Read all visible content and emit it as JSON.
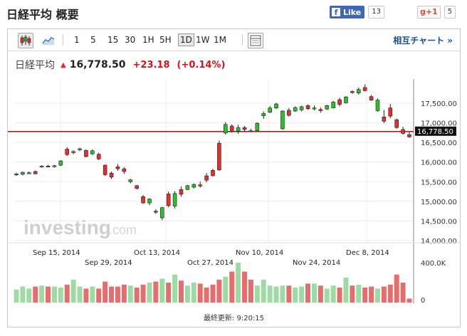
{
  "page": {
    "title": "日経平均 概要"
  },
  "social": {
    "fb_label": "Like",
    "fb_glyph": "f",
    "fb_count": "13",
    "gplus_label": "g+1",
    "gplus_count": "5"
  },
  "toolbar": {
    "ranges": [
      "1",
      "5",
      "15",
      "30",
      "1H",
      "5H",
      "1D",
      "1W",
      "1M"
    ],
    "active_range": "1D",
    "compare_label": "相互チャート »",
    "icons": [
      "candlestick-icon",
      "line-chart-icon",
      "table-icon"
    ]
  },
  "quote": {
    "name": "日経平均",
    "price": "16,778.50",
    "change": "+23.18",
    "change_pct": "(+0.14%)",
    "up_color": "#e02020"
  },
  "watermark": {
    "brand": "investing",
    "suffix": ".com"
  },
  "footer": {
    "last_update": "最終更新: 9:20:15"
  },
  "chart_data": {
    "type": "candlestick",
    "y_ticks": [
      "17,500.00",
      "17,000.00",
      "16,500.00",
      "16,000.00",
      "15,500.00",
      "15,000.00",
      "14,500.00",
      "14,000.00"
    ],
    "ylim": [
      14000,
      18000
    ],
    "x_labels_top": [
      "Sep 15, 2014",
      "Oct 13, 2014",
      "Nov 10, 2014",
      "Dec 8, 2014"
    ],
    "x_labels_bottom": [
      "Sep 29, 2014",
      "Oct 27, 2014",
      "Nov 24, 2014"
    ],
    "volume_ticks": [
      "400.0K",
      "0"
    ],
    "current_price": 16778.5,
    "current_label": "16,778.50",
    "up_color": "#2ebd2e",
    "down_color": "#e03131",
    "candles": [
      {
        "o": 15680,
        "h": 15730,
        "l": 15650,
        "c": 15700
      },
      {
        "o": 15690,
        "h": 15760,
        "l": 15660,
        "c": 15740
      },
      {
        "o": 15720,
        "h": 15760,
        "l": 15700,
        "c": 15730
      },
      {
        "o": 15760,
        "h": 15790,
        "l": 15690,
        "c": 15700
      },
      {
        "o": 15880,
        "h": 15920,
        "l": 15860,
        "c": 15900
      },
      {
        "o": 15900,
        "h": 15930,
        "l": 15870,
        "c": 15890
      },
      {
        "o": 15880,
        "h": 15930,
        "l": 15860,
        "c": 15910
      },
      {
        "o": 15920,
        "h": 16050,
        "l": 15900,
        "c": 16030
      },
      {
        "o": 16330,
        "h": 16380,
        "l": 16150,
        "c": 16190
      },
      {
        "o": 16240,
        "h": 16300,
        "l": 16200,
        "c": 16270
      },
      {
        "o": 16320,
        "h": 16370,
        "l": 16280,
        "c": 16340
      },
      {
        "o": 16300,
        "h": 16320,
        "l": 16120,
        "c": 16140
      },
      {
        "o": 16210,
        "h": 16320,
        "l": 16180,
        "c": 16290
      },
      {
        "o": 16200,
        "h": 16240,
        "l": 16050,
        "c": 16080
      },
      {
        "o": 15920,
        "h": 15940,
        "l": 15650,
        "c": 15680
      },
      {
        "o": 15720,
        "h": 15760,
        "l": 15570,
        "c": 15620
      },
      {
        "o": 15880,
        "h": 15950,
        "l": 15780,
        "c": 15830
      },
      {
        "o": 15830,
        "h": 15870,
        "l": 15700,
        "c": 15760
      },
      {
        "o": 15500,
        "h": 15570,
        "l": 15460,
        "c": 15550
      },
      {
        "o": 15400,
        "h": 15420,
        "l": 15300,
        "c": 15330
      },
      {
        "o": 15120,
        "h": 15160,
        "l": 14940,
        "c": 14960
      },
      {
        "o": 14960,
        "h": 15080,
        "l": 14900,
        "c": 15060
      },
      {
        "o": 14750,
        "h": 14800,
        "l": 14680,
        "c": 14730
      },
      {
        "o": 14580,
        "h": 14860,
        "l": 14520,
        "c": 14840
      },
      {
        "o": 15190,
        "h": 15250,
        "l": 14850,
        "c": 14890
      },
      {
        "o": 14880,
        "h": 15260,
        "l": 14820,
        "c": 15200
      },
      {
        "o": 15300,
        "h": 15380,
        "l": 15120,
        "c": 15180
      },
      {
        "o": 15300,
        "h": 15420,
        "l": 15290,
        "c": 15400
      },
      {
        "o": 15360,
        "h": 15460,
        "l": 15330,
        "c": 15430
      },
      {
        "o": 15420,
        "h": 15500,
        "l": 15350,
        "c": 15390
      },
      {
        "o": 15650,
        "h": 15720,
        "l": 15480,
        "c": 15540
      },
      {
        "o": 15790,
        "h": 15830,
        "l": 15640,
        "c": 15650
      },
      {
        "o": 16480,
        "h": 16550,
        "l": 15780,
        "c": 15800
      },
      {
        "o": 16740,
        "h": 17020,
        "l": 16700,
        "c": 16960
      },
      {
        "o": 16920,
        "h": 16960,
        "l": 16750,
        "c": 16780
      },
      {
        "o": 16790,
        "h": 16950,
        "l": 16720,
        "c": 16880
      },
      {
        "o": 16880,
        "h": 16920,
        "l": 16770,
        "c": 16830
      },
      {
        "o": 16800,
        "h": 16850,
        "l": 16760,
        "c": 16790
      },
      {
        "o": 16800,
        "h": 17010,
        "l": 16770,
        "c": 16990
      },
      {
        "o": 17180,
        "h": 17290,
        "l": 17100,
        "c": 17240
      },
      {
        "o": 17270,
        "h": 17430,
        "l": 17250,
        "c": 17380
      },
      {
        "o": 17380,
        "h": 17510,
        "l": 17350,
        "c": 17480
      },
      {
        "o": 16850,
        "h": 17320,
        "l": 16820,
        "c": 17300
      },
      {
        "o": 17320,
        "h": 17380,
        "l": 17160,
        "c": 17190
      },
      {
        "o": 17300,
        "h": 17420,
        "l": 17280,
        "c": 17390
      },
      {
        "o": 17330,
        "h": 17440,
        "l": 17290,
        "c": 17410
      },
      {
        "o": 17440,
        "h": 17470,
        "l": 17330,
        "c": 17360
      },
      {
        "o": 17360,
        "h": 17440,
        "l": 17320,
        "c": 17380
      },
      {
        "o": 17340,
        "h": 17390,
        "l": 17260,
        "c": 17310
      },
      {
        "o": 17350,
        "h": 17460,
        "l": 17330,
        "c": 17440
      },
      {
        "o": 17380,
        "h": 17560,
        "l": 17370,
        "c": 17530
      },
      {
        "o": 17590,
        "h": 17640,
        "l": 17420,
        "c": 17470
      },
      {
        "o": 17510,
        "h": 17680,
        "l": 17490,
        "c": 17660
      },
      {
        "o": 17800,
        "h": 17830,
        "l": 17740,
        "c": 17770
      },
      {
        "o": 17760,
        "h": 17900,
        "l": 17720,
        "c": 17850
      },
      {
        "o": 17900,
        "h": 17980,
        "l": 17800,
        "c": 17820
      },
      {
        "o": 17670,
        "h": 17710,
        "l": 17560,
        "c": 17580
      },
      {
        "o": 17310,
        "h": 17620,
        "l": 17280,
        "c": 17580
      },
      {
        "o": 17150,
        "h": 17330,
        "l": 17000,
        "c": 17040
      },
      {
        "o": 17380,
        "h": 17480,
        "l": 17120,
        "c": 17170
      },
      {
        "o": 17080,
        "h": 17110,
        "l": 16850,
        "c": 16880
      },
      {
        "o": 16830,
        "h": 16900,
        "l": 16700,
        "c": 16730
      },
      {
        "o": 16700,
        "h": 16760,
        "l": 16620,
        "c": 16640
      }
    ],
    "volumes": [
      130,
      160,
      140,
      160,
      170,
      160,
      160,
      150,
      180,
      230,
      160,
      140,
      160,
      140,
      210,
      160,
      160,
      180,
      170,
      150,
      180,
      200,
      210,
      240,
      200,
      280,
      220,
      170,
      200,
      190,
      150,
      180,
      230,
      260,
      310,
      400,
      310,
      230,
      170,
      230,
      170,
      160,
      170,
      170,
      150,
      160,
      190,
      190,
      170,
      140,
      170,
      150,
      250,
      170,
      180,
      150,
      160,
      140,
      160,
      180,
      280,
      200,
      40
    ]
  }
}
